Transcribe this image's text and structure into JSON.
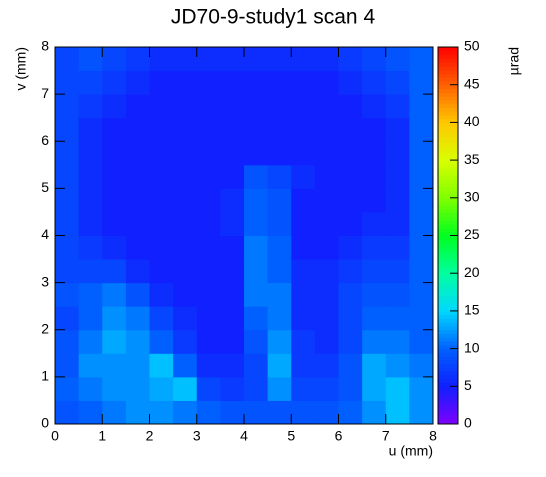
{
  "chart_data": {
    "type": "heatmap",
    "title": "JD70-9-study1 scan 4",
    "x_label": "u (mm)",
    "y_label": "v (mm)",
    "colorbar_label": "µrad",
    "xbins": [
      0,
      0.5,
      1,
      1.5,
      2,
      2.5,
      3,
      3.5,
      4,
      4.5,
      5,
      5.5,
      6,
      6.5,
      7,
      7.5,
      8
    ],
    "ybins": [
      0,
      0.5,
      1,
      1.5,
      2,
      2.5,
      3,
      3.5,
      4,
      4.5,
      5,
      5.5,
      6,
      6.5,
      7,
      7.5,
      8
    ],
    "values": [
      [
        9,
        10,
        11,
        12,
        12,
        11,
        10,
        9,
        9,
        9,
        9,
        9,
        10,
        12,
        14,
        12
      ],
      [
        10,
        11,
        12,
        12,
        13,
        14,
        8,
        7,
        8,
        12,
        8,
        8,
        9,
        13,
        14,
        12
      ],
      [
        9,
        12,
        12,
        12,
        14,
        10,
        6,
        6,
        8,
        13,
        7,
        7,
        9,
        13,
        12,
        11
      ],
      [
        9,
        11,
        13,
        12,
        10,
        7,
        5,
        5,
        9,
        12,
        7,
        6,
        8,
        11,
        11,
        10
      ],
      [
        8,
        10,
        12,
        11,
        8,
        6,
        5,
        5,
        10,
        11,
        6,
        6,
        8,
        10,
        10,
        10
      ],
      [
        9,
        10,
        11,
        9,
        6,
        5,
        5,
        5,
        11,
        11,
        6,
        6,
        8,
        9,
        9,
        10
      ],
      [
        8,
        8,
        8,
        6,
        5,
        5,
        5,
        5,
        11,
        10,
        6,
        6,
        7,
        8,
        8,
        10
      ],
      [
        8,
        7,
        6,
        5,
        5,
        5,
        5,
        5,
        11,
        10,
        5,
        5,
        6,
        7,
        7,
        10
      ],
      [
        8,
        6,
        5,
        5,
        5,
        5,
        5,
        6,
        10,
        9,
        5,
        5,
        5,
        6,
        6,
        10
      ],
      [
        8,
        6,
        5,
        5,
        5,
        5,
        5,
        6,
        10,
        9,
        5,
        5,
        5,
        5,
        6,
        10
      ],
      [
        8,
        6,
        5,
        5,
        5,
        5,
        5,
        5,
        9,
        8,
        6,
        5,
        5,
        5,
        6,
        10
      ],
      [
        8,
        6,
        5,
        5,
        5,
        5,
        5,
        5,
        5,
        5,
        5,
        5,
        5,
        5,
        6,
        10
      ],
      [
        8,
        6,
        5,
        5,
        5,
        5,
        5,
        5,
        5,
        5,
        5,
        5,
        5,
        5,
        6,
        10
      ],
      [
        8,
        7,
        6,
        5,
        5,
        5,
        5,
        5,
        5,
        5,
        5,
        5,
        5,
        6,
        7,
        10
      ],
      [
        8,
        8,
        7,
        6,
        5,
        5,
        5,
        5,
        5,
        5,
        5,
        5,
        6,
        7,
        8,
        10
      ],
      [
        8,
        9,
        8,
        7,
        6,
        6,
        6,
        6,
        6,
        6,
        6,
        6,
        7,
        8,
        9,
        10
      ]
    ],
    "xlim": [
      0,
      8
    ],
    "ylim": [
      0,
      8
    ],
    "zlim": [
      0,
      50
    ],
    "xticks": [
      0,
      1,
      2,
      3,
      4,
      5,
      6,
      7,
      8
    ],
    "yticks": [
      0,
      1,
      2,
      3,
      4,
      5,
      6,
      7,
      8
    ],
    "zticks": [
      0,
      5,
      10,
      15,
      20,
      25,
      30,
      35,
      40,
      45,
      50
    ],
    "colorscale": [
      "#8000ff",
      "#1020ff",
      "#0060ff",
      "#00d8ff",
      "#00ffa0",
      "#00ff20",
      "#80ff00",
      "#d8ff00",
      "#ffc800",
      "#ff6000",
      "#ff0000"
    ]
  }
}
